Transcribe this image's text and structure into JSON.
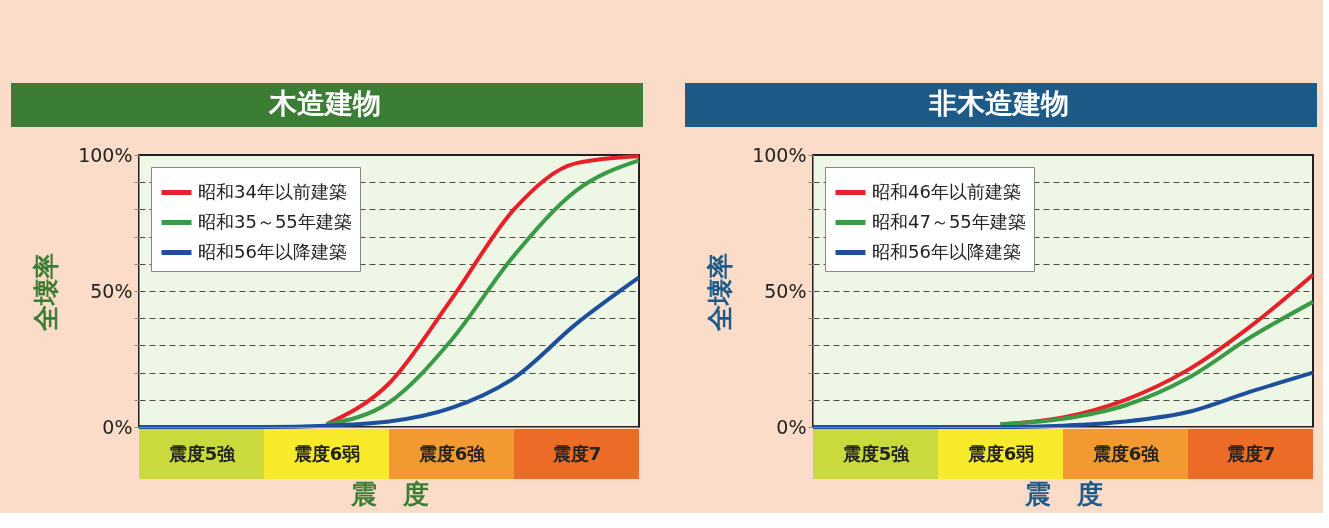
{
  "chart_data": [
    {
      "type": "line",
      "title": "木造建物",
      "xlabel": "震　度",
      "ylabel": "全壊率",
      "categories": [
        null,
        "震度5強",
        null,
        "震度6弱",
        null,
        "震度6強",
        null,
        "震度7",
        null
      ],
      "ylim": [
        0,
        100
      ],
      "yticks": [
        {
          "value": 0,
          "label": "0%"
        },
        {
          "value": 10,
          "label": null
        },
        {
          "value": 20,
          "label": null
        },
        {
          "value": 30,
          "label": null
        },
        {
          "value": 40,
          "label": null
        },
        {
          "value": 50,
          "label": "50%"
        },
        {
          "value": 60,
          "label": null
        },
        {
          "value": 70,
          "label": null
        },
        {
          "value": 80,
          "label": null
        },
        {
          "value": 90,
          "label": null
        },
        {
          "value": 100,
          "label": "100%"
        }
      ],
      "grid": "y",
      "legend": "top left",
      "line_style": "solid",
      "marker": "none",
      "series": [
        {
          "name": "昭和34年以前建築",
          "color": "#e8202a",
          "values": [
            null,
            null,
            null,
            1,
            16,
            47,
            80,
            97,
            99.5
          ]
        },
        {
          "name": "昭和35～55年建築",
          "color": "#3a9a45",
          "values": [
            null,
            null,
            null,
            1,
            9,
            32,
            63,
            87,
            98
          ]
        },
        {
          "name": "昭和56年以降建築",
          "color": "#1d4f9c",
          "values": [
            0,
            0,
            0,
            0.5,
            2,
            7,
            18,
            38,
            55
          ]
        }
      ]
    },
    {
      "type": "line",
      "title": "非木造建物",
      "xlabel": "震　度",
      "ylabel": "全壊率",
      "categories": [
        null,
        "震度5強",
        null,
        "震度6弱",
        null,
        "震度6強",
        null,
        "震度7",
        null
      ],
      "ylim": [
        0,
        100
      ],
      "yticks": [
        {
          "value": 0,
          "label": "0%"
        },
        {
          "value": 10,
          "label": null
        },
        {
          "value": 20,
          "label": null
        },
        {
          "value": 30,
          "label": null
        },
        {
          "value": 40,
          "label": null
        },
        {
          "value": 50,
          "label": "50%"
        },
        {
          "value": 60,
          "label": null
        },
        {
          "value": 70,
          "label": null
        },
        {
          "value": 80,
          "label": null
        },
        {
          "value": 90,
          "label": null
        },
        {
          "value": 100,
          "label": "100%"
        }
      ],
      "grid": "y",
      "legend": "top left",
      "line_style": "solid",
      "marker": "none",
      "series": [
        {
          "name": "昭和46年以前建築",
          "color": "#e8202a",
          "values": [
            null,
            null,
            null,
            1,
            3.5,
            10,
            21,
            37,
            56
          ]
        },
        {
          "name": "昭和47～55年建築",
          "color": "#3a9a45",
          "values": [
            null,
            null,
            null,
            1,
            3,
            8,
            18,
            33,
            46
          ]
        },
        {
          "name": "昭和56年以降建築",
          "color": "#1d4f9c",
          "values": [
            0,
            0,
            0,
            0,
            0.5,
            2,
            5.5,
            13,
            20
          ]
        }
      ]
    }
  ]
}
